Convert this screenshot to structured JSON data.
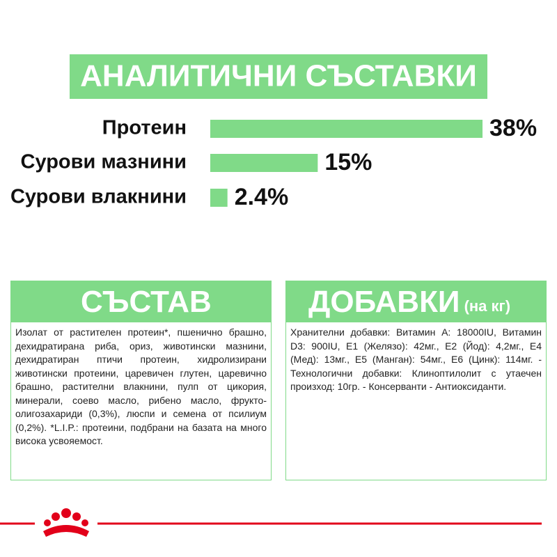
{
  "chart_data": {
    "type": "bar",
    "title": "АНАЛИТИЧНИ СЪСТАВКИ",
    "categories": [
      "Протеин",
      "Сурови мазнини",
      "Сурови влакнини"
    ],
    "values": [
      38,
      15,
      2.4
    ],
    "value_labels": [
      "38%",
      "15%",
      "2.4%"
    ],
    "color": "#80da88"
  },
  "composition": {
    "title": "СЪСТАВ",
    "text": "Изолат от растителен протеин*, пшенично брашно, дехидратирана риба, ориз, животински мазнини, дехидратиран птичи протеин, хидролизирани животински протеини, царевичен глутен, царевично брашно, растителни влакнини, пулп от цикория, минерали, соево масло, рибено масло, фрукто-олигозахариди (0,3%), люспи и семена от псилиум (0,2%). *L.I.P.: протеини, подбрани на базата на много висока усвояемост."
  },
  "additives": {
    "title": "ДОБАВКИ",
    "subtitle": "(на кг)",
    "text": "Хранителни добавки: Витамин А: 18000IU, Витамин D3: 900IU, Е1 (Желязо): 42мг., Е2 (Йод): 4,2мг., Е4 (Мед): 13мг., Е5 (Манган): 54мг., Е6 (Цинк): 114мг. - Технологични добавки: Клиноптилолит с утаечен произход: 10гр. - Консерванти - Антиоксиданти."
  }
}
